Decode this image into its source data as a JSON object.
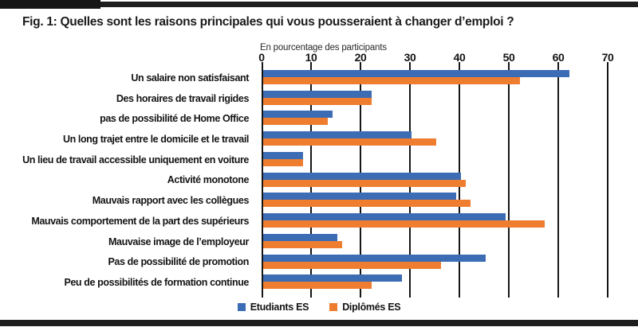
{
  "figure": {
    "title": "Fig. 1: Quelles sont les raisons principales qui vous pousseraient à changer d’emploi ?"
  },
  "chart_data": {
    "type": "bar",
    "orientation": "horizontal",
    "title": "Fig. 1: Quelles sont les raisons principales qui vous pousseraient à changer d’emploi ?",
    "axis_label": "En pourcentage des participants",
    "xlim": [
      0,
      70
    ],
    "ticks": [
      0,
      10,
      20,
      30,
      40,
      50,
      60,
      70
    ],
    "grid": true,
    "legend_position": "bottom",
    "categories": [
      "Un salaire non satisfaisant",
      "Des horaires de travail rigides",
      "pas de possibilité de Home Office",
      "Un long trajet entre le domicile et le travail",
      "Un lieu de travail accessible uniquement en voiture",
      "Activité monotone",
      "Mauvais rapport avec les collègues",
      "Mauvais comportement de la part des supérieurs",
      "Mauvaise image de l’employeur",
      "Pas de possibilité de promotion",
      "Peu de possibilités de formation continue"
    ],
    "series": [
      {
        "name": "Etudiants ES",
        "color": "#3C6CB4",
        "values": [
          62,
          22,
          14,
          30,
          8,
          40,
          39,
          49,
          15,
          45,
          28
        ]
      },
      {
        "name": "Diplômés ES",
        "color": "#EE7D30",
        "values": [
          52,
          22,
          13,
          35,
          8,
          41,
          42,
          57,
          16,
          36,
          22
        ]
      }
    ]
  },
  "colors": {
    "accent_bar": "#1e1e1e",
    "gridline": "#161616",
    "text": "#141414"
  }
}
